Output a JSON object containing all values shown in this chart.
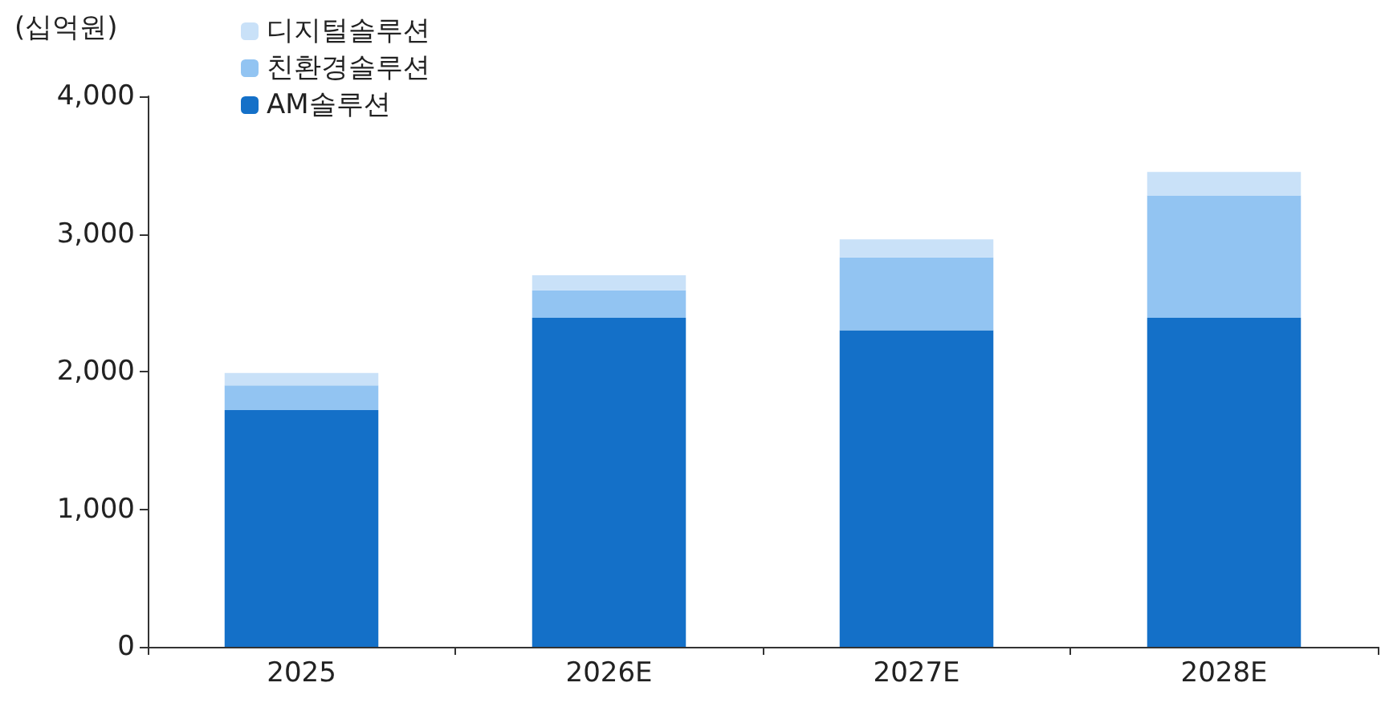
{
  "chart_data": {
    "type": "bar",
    "stacked": true,
    "ylabel": "(십억원)",
    "categories": [
      "2025",
      "2026E",
      "2027E",
      "2028E"
    ],
    "series": [
      {
        "name": "AM솔루션",
        "color": "#1470c8",
        "values": [
          1720,
          2390,
          2300,
          2390
        ]
      },
      {
        "name": "친환경솔루션",
        "color": "#92c4f2",
        "values": [
          180,
          200,
          530,
          890
        ]
      },
      {
        "name": "디지털솔루션",
        "color": "#c9e1f8",
        "values": [
          90,
          110,
          130,
          170
        ]
      }
    ],
    "ylim": [
      0,
      4000
    ],
    "yticks": [
      0,
      {
        "value": 1000,
        "label": "1,000"
      },
      {
        "value": 2000,
        "label": "2,000"
      },
      {
        "value": 3000,
        "label": "3,000"
      },
      {
        "value": 4000,
        "label": "4,000"
      }
    ],
    "grid": false,
    "legend": "top left"
  }
}
